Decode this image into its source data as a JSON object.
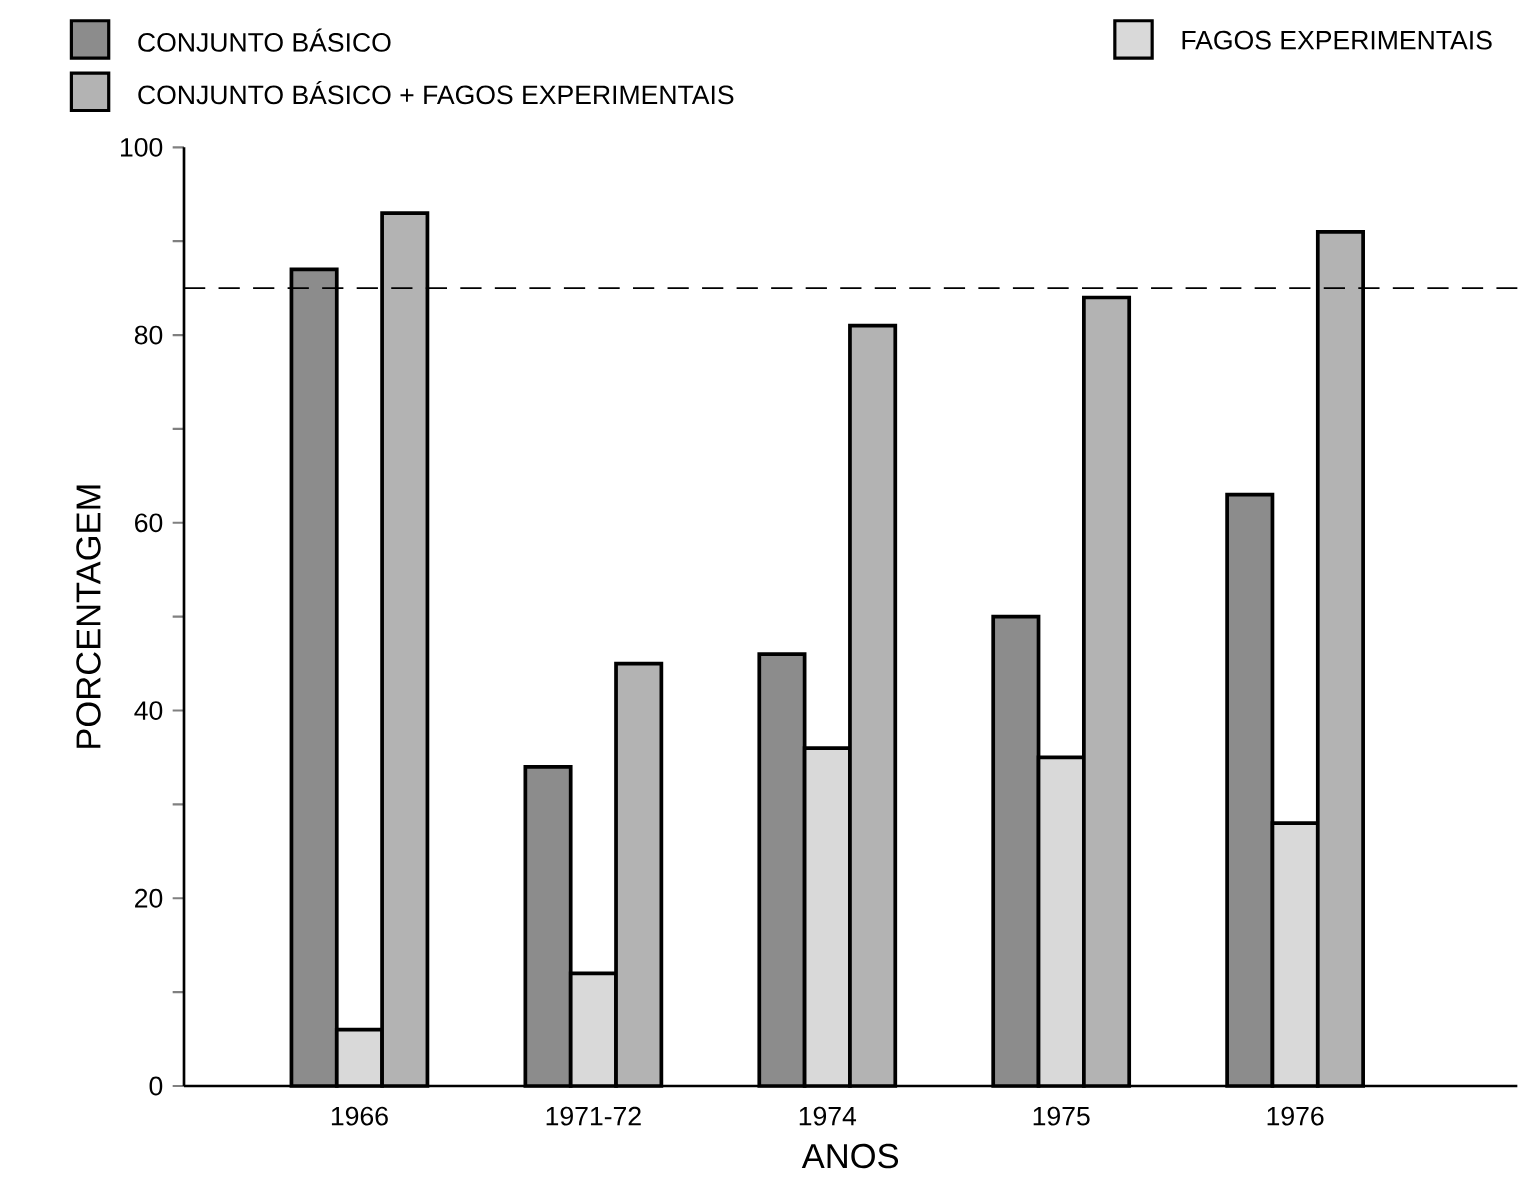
{
  "chart_data": {
    "type": "bar",
    "xlabel": "ANOS",
    "ylabel": "PORCENTAGEM",
    "categories": [
      "1966",
      "1971-72",
      "1974",
      "1975",
      "1976"
    ],
    "series": [
      {
        "name": "CONJUNTO BÁSICO",
        "color": "#8c8c8c",
        "values": [
          87,
          34,
          46,
          50,
          63
        ]
      },
      {
        "name": "FAGOS EXPERIMENTAIS",
        "color": "#d9d9d9",
        "values": [
          6,
          12,
          36,
          35,
          28
        ]
      },
      {
        "name": "CONJUNTO BÁSICO + FAGOS EXPERIMENTAIS",
        "color": "#b3b3b3",
        "values": [
          93,
          45,
          81,
          84,
          91
        ]
      }
    ],
    "ylim": [
      0,
      100
    ],
    "yticks": [
      0,
      {
        "value": 10,
        "label": null
      },
      20,
      {
        "value": 30,
        "label": null
      },
      40,
      {
        "value": 50,
        "label": null
      },
      60,
      {
        "value": 70,
        "label": null
      },
      80,
      {
        "value": 90,
        "label": null
      },
      100
    ],
    "ref_lines": [
      {
        "axis": "y",
        "value": 85,
        "line_style": "dashed"
      }
    ],
    "legend": "top",
    "grid": false
  }
}
